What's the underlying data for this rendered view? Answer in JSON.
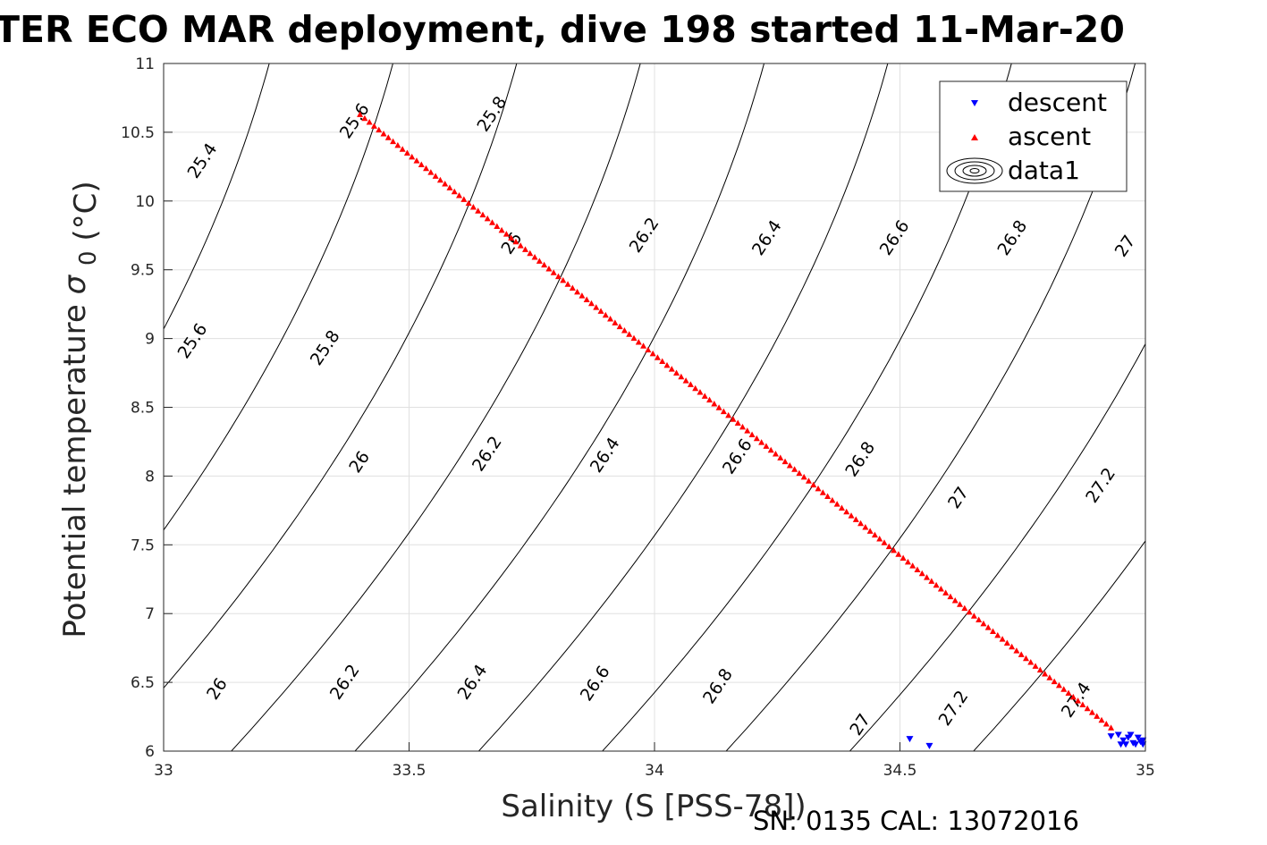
{
  "chart_data": {
    "type": "scatter",
    "title": "TER ECO MAR deployment, dive 198 started 11-Mar-20",
    "xlabel": "Salinity (S [PSS-78])",
    "ylabel": "Potential temperature",
    "ylabel_symbol": "σ",
    "ylabel_subscript": "0",
    "ylabel_unit": "(°C)",
    "xlim": [
      33,
      35
    ],
    "ylim": [
      6,
      11
    ],
    "x_ticks": [
      "33",
      "33.5",
      "34",
      "34.5",
      "35"
    ],
    "y_ticks": [
      "6",
      "6.5",
      "7",
      "7.5",
      "8",
      "8.5",
      "9",
      "9.5",
      "10",
      "10.5",
      "11"
    ],
    "grid": true,
    "legend_position": "top-right",
    "legend": [
      "descent",
      "ascent",
      "data1"
    ],
    "series": [
      {
        "name": "descent",
        "marker": "triangle-down",
        "color": "#0000ff",
        "x": [
          34.52,
          34.56,
          34.93,
          34.945,
          34.95,
          34.955,
          34.96,
          34.965,
          34.97,
          34.975,
          34.98,
          34.985,
          34.99,
          34.995,
          34.995
        ],
        "y": [
          6.09,
          6.04,
          6.11,
          6.12,
          6.05,
          6.08,
          6.05,
          6.1,
          6.12,
          6.06,
          6.05,
          6.1,
          6.07,
          6.05,
          6.08
        ]
      },
      {
        "name": "ascent",
        "marker": "triangle-up",
        "color": "#ff0000",
        "x_start": 33.4,
        "y_start": 10.63,
        "x_end": 34.93,
        "y_end": 6.17,
        "n_points": 160
      }
    ],
    "contours": {
      "name": "data1",
      "color": "#000000",
      "levels": [
        25.4,
        25.6,
        25.8,
        26.0,
        26.2,
        26.4,
        26.6,
        26.8,
        27.0,
        27.2,
        27.4
      ],
      "slope_degC_per_psu": 6.0,
      "curvature": -0.18,
      "ref_temperature": 8.5,
      "ref_salinity_at_26": 33.415,
      "salinity_per_level_unit": 1.26,
      "labels": [
        {
          "text": "25.4",
          "x": 33.08,
          "y": 10.29
        },
        {
          "text": "25.6",
          "x": 33.39,
          "y": 10.58
        },
        {
          "text": "25.8",
          "x": 33.67,
          "y": 10.63
        },
        {
          "text": "26",
          "x": 33.71,
          "y": 9.69
        },
        {
          "text": "26.2",
          "x": 33.98,
          "y": 9.75
        },
        {
          "text": "26.4",
          "x": 34.23,
          "y": 9.73
        },
        {
          "text": "26.6",
          "x": 34.49,
          "y": 9.73
        },
        {
          "text": "26.8",
          "x": 34.73,
          "y": 9.73
        },
        {
          "text": "27",
          "x": 34.96,
          "y": 9.67
        },
        {
          "text": "25.6",
          "x": 33.06,
          "y": 8.98
        },
        {
          "text": "25.8",
          "x": 33.33,
          "y": 8.93
        },
        {
          "text": "26",
          "x": 33.4,
          "y": 8.1
        },
        {
          "text": "26.2",
          "x": 33.66,
          "y": 8.16
        },
        {
          "text": "26.4",
          "x": 33.9,
          "y": 8.15
        },
        {
          "text": "26.6",
          "x": 34.17,
          "y": 8.14
        },
        {
          "text": "26.8",
          "x": 34.42,
          "y": 8.12
        },
        {
          "text": "27",
          "x": 34.62,
          "y": 7.84
        },
        {
          "text": "27.2",
          "x": 34.91,
          "y": 7.93
        },
        {
          "text": "26",
          "x": 33.11,
          "y": 6.45
        },
        {
          "text": "26.2",
          "x": 33.37,
          "y": 6.5
        },
        {
          "text": "26.4",
          "x": 33.63,
          "y": 6.5
        },
        {
          "text": "26.6",
          "x": 33.88,
          "y": 6.49
        },
        {
          "text": "26.8",
          "x": 34.13,
          "y": 6.47
        },
        {
          "text": "27",
          "x": 34.42,
          "y": 6.19
        },
        {
          "text": "27.2",
          "x": 34.61,
          "y": 6.31
        },
        {
          "text": "27.4",
          "x": 34.86,
          "y": 6.37
        }
      ]
    }
  },
  "footer": {
    "serial": "SN: 0135  CAL: 13072016"
  }
}
